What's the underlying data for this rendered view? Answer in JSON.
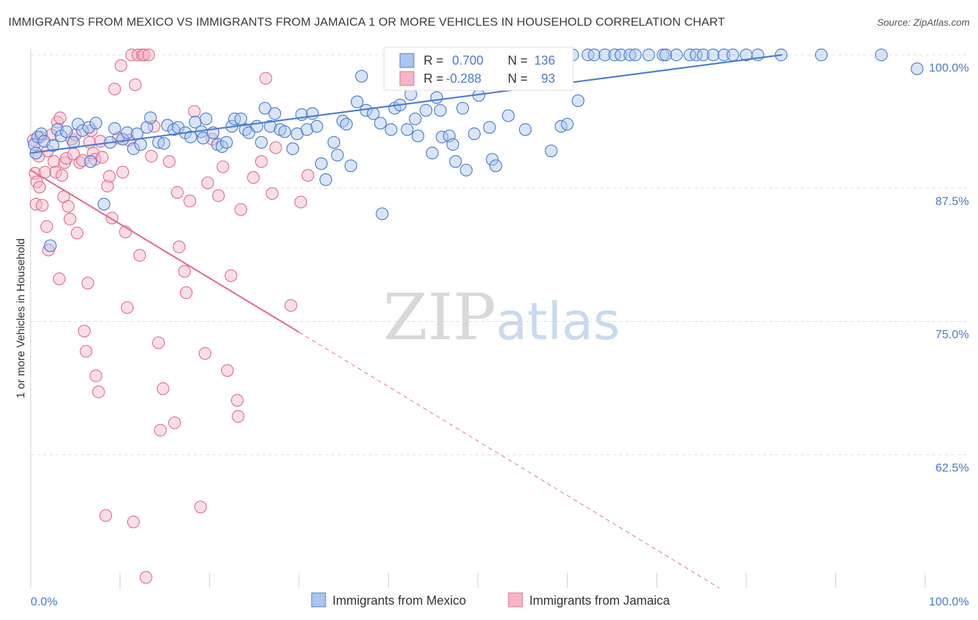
{
  "header": {
    "title": "IMMIGRANTS FROM MEXICO VS IMMIGRANTS FROM JAMAICA 1 OR MORE VEHICLES IN HOUSEHOLD CORRELATION CHART",
    "source": "Source: ZipAtlas.com"
  },
  "watermark": {
    "zip": "ZIP",
    "atlas": "atlas"
  },
  "legend": {
    "r_label": "R =",
    "n_label": "N =",
    "mexico": {
      "r": "0.700",
      "n": "136"
    },
    "jamaica": {
      "r": "-0.288",
      "n": "93"
    }
  },
  "colors": {
    "mexico": "#4a7bd0",
    "mexico_fill": "#aac6ee",
    "jamaica": "#e0708f",
    "jamaica_fill": "#f5b5c8",
    "axis_text": "#4a7bd0",
    "grid": "#dddddd"
  },
  "chart_data": {
    "type": "scatter",
    "title": "IMMIGRANTS FROM MEXICO VS IMMIGRANTS FROM JAMAICA 1 OR MORE VEHICLES IN HOUSEHOLD CORRELATION CHART",
    "xlabel": "",
    "ylabel": "1 or more Vehicles in Household",
    "xlim": [
      0,
      100
    ],
    "ylim": [
      50,
      100
    ],
    "x_tick_labels": [
      "0.0%",
      "100.0%"
    ],
    "y_ticks": [
      62.5,
      75.0,
      87.5,
      100.0
    ],
    "y_tick_labels": [
      "62.5%",
      "75.0%",
      "87.5%",
      "100.0%"
    ],
    "grid": true,
    "legend_position": "top-center",
    "series": [
      {
        "name": "Immigrants from Mexico",
        "color": "#4a7bd0",
        "r": 0.7,
        "n": 136,
        "trend": [
          [
            0,
            90.8
          ],
          [
            84,
            100.0
          ]
        ],
        "points": [
          [
            0.4,
            91.6
          ],
          [
            0.6,
            90.8
          ],
          [
            0.8,
            92.3
          ],
          [
            1.2,
            92.6
          ],
          [
            1.5,
            91.9
          ],
          [
            2.2,
            82.1
          ],
          [
            2.5,
            91.5
          ],
          [
            3.0,
            93.0
          ],
          [
            3.4,
            92.4
          ],
          [
            4.0,
            92.8
          ],
          [
            4.8,
            91.8
          ],
          [
            5.3,
            93.5
          ],
          [
            5.8,
            92.9
          ],
          [
            6.5,
            93.2
          ],
          [
            6.7,
            90.0
          ],
          [
            7.3,
            93.6
          ],
          [
            8.2,
            86.0
          ],
          [
            8.9,
            91.8
          ],
          [
            9.4,
            93.1
          ],
          [
            10.3,
            92.1
          ],
          [
            10.8,
            92.7
          ],
          [
            11.5,
            91.2
          ],
          [
            11.9,
            92.6
          ],
          [
            12.3,
            91.6
          ],
          [
            13.0,
            93.2
          ],
          [
            13.4,
            94.1
          ],
          [
            14.3,
            91.8
          ],
          [
            14.9,
            91.7
          ],
          [
            15.3,
            93.4
          ],
          [
            16.0,
            93.0
          ],
          [
            16.5,
            93.2
          ],
          [
            17.3,
            92.7
          ],
          [
            17.9,
            92.3
          ],
          [
            18.4,
            93.7
          ],
          [
            19.1,
            92.8
          ],
          [
            19.3,
            92.2
          ],
          [
            19.6,
            94.0
          ],
          [
            20.4,
            92.7
          ],
          [
            20.9,
            91.6
          ],
          [
            21.4,
            91.4
          ],
          [
            21.9,
            91.8
          ],
          [
            22.5,
            93.3
          ],
          [
            22.8,
            94.0
          ],
          [
            23.5,
            94.0
          ],
          [
            24.0,
            93.0
          ],
          [
            24.4,
            92.7
          ],
          [
            25.3,
            93.3
          ],
          [
            25.8,
            91.8
          ],
          [
            26.2,
            95.0
          ],
          [
            26.8,
            93.3
          ],
          [
            27.3,
            94.5
          ],
          [
            27.9,
            93.0
          ],
          [
            28.4,
            92.8
          ],
          [
            29.3,
            91.2
          ],
          [
            29.8,
            92.6
          ],
          [
            30.3,
            94.4
          ],
          [
            30.9,
            93.0
          ],
          [
            31.5,
            94.5
          ],
          [
            32.0,
            93.3
          ],
          [
            32.5,
            89.8
          ],
          [
            33.0,
            88.3
          ],
          [
            33.9,
            91.8
          ],
          [
            34.3,
            90.6
          ],
          [
            34.9,
            93.8
          ],
          [
            35.3,
            93.5
          ],
          [
            35.8,
            89.6
          ],
          [
            36.5,
            95.6
          ],
          [
            37.0,
            98.0
          ],
          [
            37.5,
            94.8
          ],
          [
            38.3,
            94.5
          ],
          [
            39.1,
            93.6
          ],
          [
            39.3,
            85.1
          ],
          [
            40.3,
            93.0
          ],
          [
            40.7,
            95.0
          ],
          [
            41.3,
            95.3
          ],
          [
            42.1,
            93.0
          ],
          [
            42.5,
            96.3
          ],
          [
            43.0,
            94.0
          ],
          [
            43.3,
            92.4
          ],
          [
            44.2,
            94.8
          ],
          [
            44.9,
            90.8
          ],
          [
            45.4,
            96.0
          ],
          [
            45.8,
            94.8
          ],
          [
            46.0,
            92.3
          ],
          [
            46.8,
            92.4
          ],
          [
            47.2,
            91.6
          ],
          [
            47.5,
            90.0
          ],
          [
            48.3,
            95.0
          ],
          [
            48.7,
            89.2
          ],
          [
            49.0,
            100.0
          ],
          [
            49.6,
            92.6
          ],
          [
            50.1,
            96.2
          ],
          [
            50.8,
            100.0
          ],
          [
            51.3,
            93.2
          ],
          [
            51.6,
            90.2
          ],
          [
            52.0,
            89.6
          ],
          [
            52.5,
            100.0
          ],
          [
            53.4,
            94.3
          ],
          [
            54.0,
            98.4
          ],
          [
            54.6,
            100.0
          ],
          [
            55.3,
            93.0
          ],
          [
            55.9,
            100.0
          ],
          [
            56.3,
            98.5
          ],
          [
            57.0,
            100.0
          ],
          [
            57.6,
            100.0
          ],
          [
            58.2,
            91.0
          ],
          [
            58.8,
            100.0
          ],
          [
            59.3,
            93.3
          ],
          [
            60.0,
            93.5
          ],
          [
            60.6,
            100.0
          ],
          [
            61.2,
            95.7
          ],
          [
            62.3,
            100.0
          ],
          [
            63.0,
            100.0
          ],
          [
            64.2,
            100.0
          ],
          [
            65.3,
            100.0
          ],
          [
            66.0,
            100.0
          ],
          [
            67.0,
            100.0
          ],
          [
            67.6,
            100.0
          ],
          [
            69.1,
            100.0
          ],
          [
            70.7,
            100.0
          ],
          [
            71.0,
            100.0
          ],
          [
            72.2,
            100.0
          ],
          [
            73.7,
            100.0
          ],
          [
            74.4,
            100.0
          ],
          [
            75.2,
            100.0
          ],
          [
            76.3,
            100.0
          ],
          [
            77.5,
            100.0
          ],
          [
            78.5,
            100.0
          ],
          [
            80.0,
            100.0
          ],
          [
            81.3,
            100.0
          ],
          [
            83.9,
            100.0
          ],
          [
            88.4,
            100.0
          ],
          [
            95.1,
            100.0
          ],
          [
            99.1,
            98.7
          ]
        ]
      },
      {
        "name": "Immigrants from Jamaica",
        "color": "#e0708f",
        "r": -0.288,
        "n": 93,
        "trend": [
          [
            0,
            89.2
          ],
          [
            30,
            74.0
          ]
        ],
        "trend_dashed": [
          [
            30,
            74.0
          ],
          [
            77,
            50.0
          ]
        ],
        "points": [
          [
            0.3,
            92.0
          ],
          [
            0.5,
            88.9
          ],
          [
            0.6,
            86.0
          ],
          [
            0.7,
            88.1
          ],
          [
            0.9,
            90.5
          ],
          [
            1.0,
            87.6
          ],
          [
            1.1,
            92.3
          ],
          [
            1.3,
            85.9
          ],
          [
            1.6,
            89.0
          ],
          [
            1.8,
            83.9
          ],
          [
            1.9,
            91.0
          ],
          [
            2.0,
            81.7
          ],
          [
            2.3,
            92.5
          ],
          [
            2.6,
            90.0
          ],
          [
            2.8,
            89.0
          ],
          [
            3.0,
            93.7
          ],
          [
            3.2,
            79.0
          ],
          [
            3.3,
            94.1
          ],
          [
            3.5,
            88.7
          ],
          [
            3.7,
            86.7
          ],
          [
            3.8,
            89.9
          ],
          [
            4.0,
            90.3
          ],
          [
            4.2,
            85.8
          ],
          [
            4.4,
            84.6
          ],
          [
            4.6,
            92.1
          ],
          [
            4.8,
            90.7
          ],
          [
            5.0,
            92.5
          ],
          [
            5.2,
            83.3
          ],
          [
            5.5,
            89.9
          ],
          [
            5.8,
            90.1
          ],
          [
            6.0,
            74.1
          ],
          [
            6.2,
            72.2
          ],
          [
            6.4,
            78.6
          ],
          [
            6.6,
            91.8
          ],
          [
            6.8,
            92.9
          ],
          [
            7.0,
            90.8
          ],
          [
            7.2,
            90.2
          ],
          [
            7.3,
            69.9
          ],
          [
            7.6,
            68.4
          ],
          [
            7.8,
            91.9
          ],
          [
            8.0,
            90.4
          ],
          [
            8.4,
            56.8
          ],
          [
            8.6,
            87.7
          ],
          [
            8.8,
            88.6
          ],
          [
            9.1,
            84.7
          ],
          [
            9.4,
            96.8
          ],
          [
            9.8,
            92.2
          ],
          [
            10.1,
            99.0
          ],
          [
            10.3,
            89.0
          ],
          [
            10.6,
            83.4
          ],
          [
            10.8,
            76.3
          ],
          [
            11.0,
            92.0
          ],
          [
            11.3,
            100.0
          ],
          [
            11.5,
            56.2
          ],
          [
            11.7,
            97.2
          ],
          [
            12.0,
            100.0
          ],
          [
            12.2,
            81.2
          ],
          [
            12.5,
            100.0
          ],
          [
            12.7,
            100.0
          ],
          [
            12.9,
            51.0
          ],
          [
            13.2,
            100.0
          ],
          [
            13.5,
            90.5
          ],
          [
            13.8,
            93.3
          ],
          [
            14.3,
            73.0
          ],
          [
            14.5,
            64.8
          ],
          [
            14.8,
            68.7
          ],
          [
            15.5,
            90.0
          ],
          [
            16.1,
            65.5
          ],
          [
            16.4,
            87.1
          ],
          [
            16.6,
            82.0
          ],
          [
            17.2,
            79.7
          ],
          [
            17.4,
            77.7
          ],
          [
            17.8,
            86.3
          ],
          [
            18.3,
            94.7
          ],
          [
            19.0,
            57.6
          ],
          [
            19.5,
            72.0
          ],
          [
            19.8,
            88.0
          ],
          [
            20.3,
            92.1
          ],
          [
            21.0,
            86.8
          ],
          [
            21.5,
            89.5
          ],
          [
            22.0,
            70.4
          ],
          [
            22.4,
            79.3
          ],
          [
            23.1,
            67.6
          ],
          [
            23.2,
            66.1
          ],
          [
            23.5,
            85.5
          ],
          [
            24.9,
            88.5
          ],
          [
            25.8,
            90.0
          ],
          [
            26.3,
            97.8
          ],
          [
            27.0,
            87.0
          ],
          [
            27.4,
            91.3
          ],
          [
            29.1,
            76.5
          ],
          [
            30.2,
            86.2
          ],
          [
            31.0,
            88.7
          ]
        ]
      }
    ]
  },
  "axes": {
    "ylabel": "1 or more Vehicles in Household",
    "y_ticks": [
      "62.5%",
      "75.0%",
      "87.5%",
      "100.0%"
    ],
    "x_left": "0.0%",
    "x_right": "100.0%"
  },
  "bottom_legend": {
    "mexico": "Immigrants from Mexico",
    "jamaica": "Immigrants from Jamaica"
  }
}
